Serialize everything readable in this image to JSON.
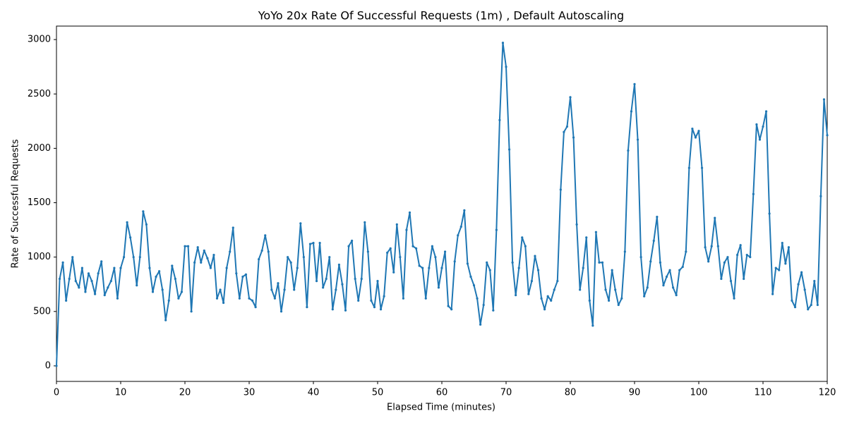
{
  "chart_data": {
    "type": "line",
    "title": "YoYo 20x Rate Of Successful Requests (1m) , Default Autoscaling",
    "x_label": "Elapsed Time (minutes)",
    "y_label": "Rate of Successful Requests",
    "xlim": [
      0,
      120
    ],
    "ylim": [
      -143,
      3124
    ],
    "xticks": [
      0,
      10,
      20,
      30,
      40,
      50,
      60,
      70,
      80,
      90,
      100,
      110,
      120
    ],
    "yticks": [
      0,
      500,
      1000,
      1500,
      2000,
      2500,
      3000
    ],
    "series": [
      {
        "name": "Rate of Successful Requests",
        "color": "#1f77b4",
        "x": [
          0,
          0.5,
          1,
          1.5,
          2,
          2.5,
          3,
          3.5,
          4,
          4.5,
          5,
          5.5,
          6,
          6.5,
          7,
          7.5,
          8,
          8.5,
          9,
          9.5,
          10,
          10.5,
          11,
          11.5,
          12,
          12.5,
          13,
          13.5,
          14,
          14.5,
          15,
          15.5,
          16,
          16.5,
          17,
          17.5,
          18,
          18.5,
          19,
          19.5,
          20,
          20.5,
          21,
          21.5,
          22,
          22.5,
          23,
          23.5,
          24,
          24.5,
          25,
          25.5,
          26,
          26.5,
          27,
          27.5,
          28,
          28.5,
          29,
          29.5,
          30,
          30.5,
          31,
          31.5,
          32,
          32.5,
          33,
          33.5,
          34,
          34.5,
          35,
          35.5,
          36,
          36.5,
          37,
          37.5,
          38,
          38.5,
          39,
          39.5,
          40,
          40.5,
          41,
          41.5,
          42,
          42.5,
          43,
          43.5,
          44,
          44.5,
          45,
          45.5,
          46,
          46.5,
          47,
          47.5,
          48,
          48.5,
          49,
          49.5,
          50,
          50.5,
          51,
          51.5,
          52,
          52.5,
          53,
          53.5,
          54,
          54.5,
          55,
          55.5,
          56,
          56.5,
          57,
          57.5,
          58,
          58.5,
          59,
          59.5,
          60,
          60.5,
          61,
          61.5,
          62,
          62.5,
          63,
          63.5,
          64,
          64.5,
          65,
          65.5,
          66,
          66.5,
          67,
          67.5,
          68,
          68.5,
          69,
          69.5,
          70,
          70.5,
          71,
          71.5,
          72,
          72.5,
          73,
          73.5,
          74,
          74.5,
          75,
          75.5,
          76,
          76.5,
          77,
          77.5,
          78,
          78.5,
          79,
          79.5,
          80,
          80.5,
          81,
          81.5,
          82,
          82.5,
          83,
          83.5,
          84,
          84.5,
          85,
          85.5,
          86,
          86.5,
          87,
          87.5,
          88,
          88.5,
          89,
          89.5,
          90,
          90.5,
          91,
          91.5,
          92,
          92.5,
          93,
          93.5,
          94,
          94.5,
          95,
          95.5,
          96,
          96.5,
          97,
          97.5,
          98,
          98.5,
          99,
          99.5,
          100,
          100.5,
          101,
          101.5,
          102,
          102.5,
          103,
          103.5,
          104,
          104.5,
          105,
          105.5,
          106,
          106.5,
          107,
          107.5,
          108,
          108.5,
          109,
          109.5,
          110,
          110.5,
          111,
          111.5,
          112,
          112.5,
          113,
          113.5,
          114,
          114.5,
          115,
          115.5,
          116,
          116.5,
          117,
          117.5,
          118,
          118.5,
          119,
          119.5,
          120
        ],
        "values": [
          0,
          800,
          950,
          600,
          800,
          1000,
          780,
          720,
          900,
          680,
          850,
          780,
          660,
          850,
          960,
          650,
          720,
          780,
          900,
          620,
          900,
          1000,
          1320,
          1180,
          1000,
          740,
          1000,
          1420,
          1300,
          900,
          680,
          820,
          870,
          700,
          420,
          600,
          920,
          800,
          620,
          680,
          1100,
          1100,
          500,
          950,
          1090,
          950,
          1060,
          990,
          900,
          1020,
          620,
          700,
          580,
          900,
          1050,
          1270,
          850,
          620,
          820,
          840,
          620,
          600,
          540,
          980,
          1060,
          1200,
          1050,
          700,
          620,
          760,
          500,
          700,
          1000,
          950,
          700,
          900,
          1310,
          1000,
          540,
          1120,
          1130,
          780,
          1130,
          720,
          800,
          1000,
          520,
          700,
          930,
          750,
          510,
          1100,
          1150,
          800,
          600,
          800,
          1320,
          1050,
          600,
          540,
          780,
          520,
          640,
          1040,
          1080,
          860,
          1300,
          1000,
          620,
          1250,
          1410,
          1100,
          1080,
          920,
          900,
          620,
          900,
          1100,
          1000,
          720,
          900,
          1050,
          550,
          520,
          960,
          1200,
          1280,
          1430,
          940,
          820,
          740,
          620,
          380,
          560,
          950,
          880,
          510,
          1250,
          2260,
          2970,
          2750,
          1990,
          950,
          650,
          900,
          1180,
          1100,
          660,
          780,
          1010,
          880,
          620,
          520,
          640,
          600,
          700,
          780,
          1620,
          2150,
          2200,
          2470,
          2100,
          1300,
          700,
          900,
          1180,
          600,
          370,
          1230,
          950,
          950,
          700,
          600,
          880,
          700,
          560,
          620,
          1050,
          1980,
          2340,
          2590,
          2080,
          1000,
          640,
          720,
          960,
          1150,
          1370,
          950,
          740,
          820,
          880,
          720,
          650,
          880,
          910,
          1050,
          1820,
          2180,
          2100,
          2160,
          1820,
          1090,
          960,
          1100,
          1360,
          1100,
          800,
          950,
          1000,
          780,
          620,
          1020,
          1110,
          800,
          1020,
          1000,
          1580,
          2220,
          2080,
          2200,
          2340,
          1400,
          660,
          900,
          880,
          1130,
          940,
          1090,
          600,
          540,
          750,
          860,
          700,
          520,
          560,
          780,
          560,
          1560,
          2450,
          2120
        ]
      }
    ]
  }
}
